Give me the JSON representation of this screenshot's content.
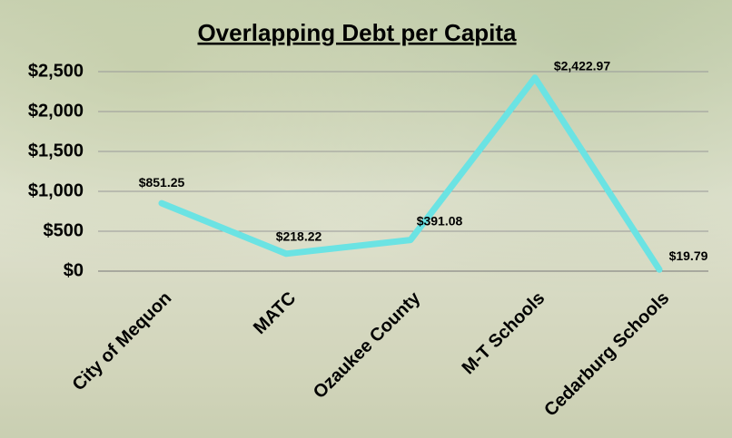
{
  "chart_data": {
    "type": "line",
    "title": "Overlapping Debt per Capita",
    "categories": [
      "City of Mequon",
      "MATC",
      "Ozaukee County",
      "M-T Schools",
      "Cedarburg Schools"
    ],
    "series": [
      {
        "name": "Overlapping Debt per Capita",
        "color": "#6be3e3",
        "values": [
          851.25,
          218.22,
          391.08,
          2422.97,
          19.79
        ],
        "value_labels": [
          "$851.25",
          "$218.22",
          "$391.08",
          "$2,422.97",
          "$19.79"
        ]
      }
    ],
    "ylim": [
      0,
      2500
    ],
    "yticks": [
      {
        "value": 0,
        "label": "$0"
      },
      {
        "value": 500,
        "label": "$500"
      },
      {
        "value": 1000,
        "label": "$1,000"
      },
      {
        "value": 1500,
        "label": "$1,500"
      },
      {
        "value": 2000,
        "label": "$2,000"
      },
      {
        "value": 2500,
        "label": "$2,500"
      }
    ],
    "grid": true
  }
}
